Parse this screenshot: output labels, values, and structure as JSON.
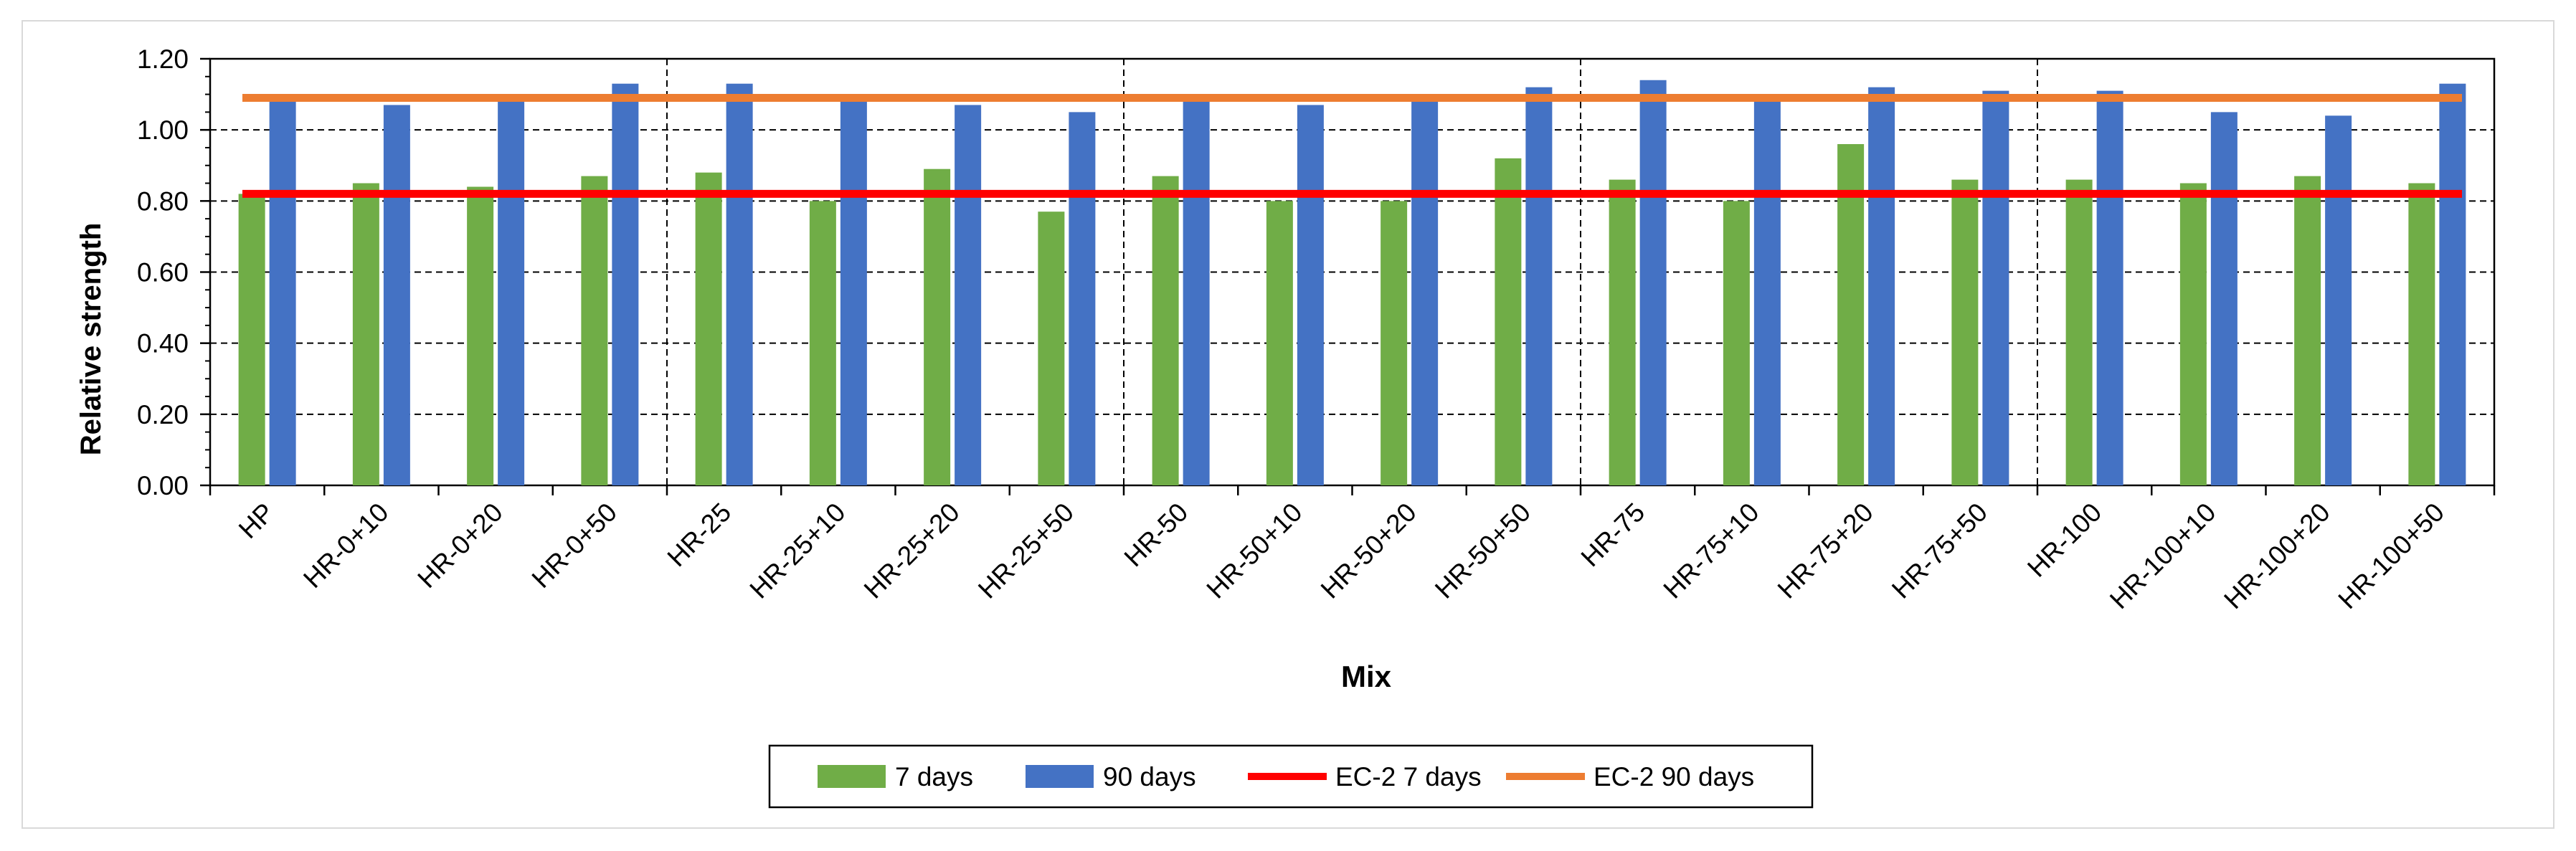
{
  "chart_data": {
    "type": "bar",
    "title": "",
    "xlabel": "Mix",
    "ylabel": "Relative strength",
    "ylim": [
      0,
      1.2
    ],
    "yticks": [
      0.0,
      0.2,
      0.4,
      0.6,
      0.8,
      1.0,
      1.2
    ],
    "ytick_labels": [
      "0.00",
      "0.20",
      "0.40",
      "0.60",
      "0.80",
      "1.00",
      "1.20"
    ],
    "grid": "horizontal dashed",
    "group_separators_after": [
      "HR-0+50",
      "HR-25+50",
      "HR-50+50",
      "HR-75+50"
    ],
    "categories": [
      "HP",
      "HR-0+10",
      "HR-0+20",
      "HR-0+50",
      "HR-25",
      "HR-25+10",
      "HR-25+20",
      "HR-25+50",
      "HR-50",
      "HR-50+10",
      "HR-50+20",
      "HR-50+50",
      "HR-75",
      "HR-75+10",
      "HR-75+20",
      "HR-75+50",
      "HR-100",
      "HR-100+10",
      "HR-100+20",
      "HR-100+50"
    ],
    "series": [
      {
        "name": "7 days",
        "color": "#70ad47",
        "values": [
          0.82,
          0.85,
          0.84,
          0.87,
          0.88,
          0.8,
          0.89,
          0.77,
          0.87,
          0.8,
          0.8,
          0.92,
          0.86,
          0.8,
          0.96,
          0.86,
          0.86,
          0.85,
          0.87,
          0.85
        ]
      },
      {
        "name": "90 days",
        "color": "#4472c4",
        "values": [
          1.08,
          1.07,
          1.08,
          1.13,
          1.13,
          1.1,
          1.07,
          1.05,
          1.08,
          1.07,
          1.08,
          1.12,
          1.14,
          1.08,
          1.12,
          1.11,
          1.11,
          1.05,
          1.04,
          1.13
        ]
      }
    ],
    "reference_lines": [
      {
        "name": "EC-2 7 days",
        "color": "#ff0000",
        "value": 0.82
      },
      {
        "name": "EC-2 90 days",
        "color": "#ed7d31",
        "value": 1.09
      }
    ],
    "legend": {
      "placement": "bottom-center",
      "entries": [
        "7 days",
        "90 days",
        "EC-2 7 days",
        "EC-2 90 days"
      ]
    }
  }
}
